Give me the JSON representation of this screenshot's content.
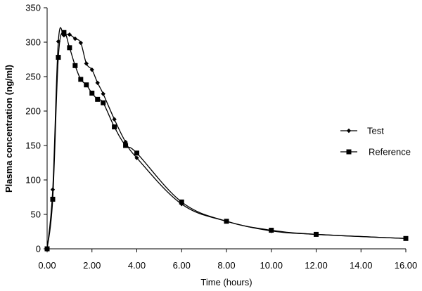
{
  "chart_data": {
    "type": "line",
    "title": "",
    "xlabel": "Time (hours)",
    "ylabel": "Plasma concentration (ng/ml)",
    "xlim": [
      0,
      16
    ],
    "ylim": [
      0,
      350
    ],
    "xticks": [
      0,
      2,
      4,
      6,
      8,
      10,
      12,
      14,
      16
    ],
    "xtick_labels": [
      "0.00",
      "2.00",
      "4.00",
      "6.00",
      "8.00",
      "10.00",
      "12.00",
      "14.00",
      "16.00"
    ],
    "yticks": [
      0,
      50,
      100,
      150,
      200,
      250,
      300,
      350
    ],
    "ytick_labels": [
      "0",
      "50",
      "100",
      "150",
      "200",
      "250",
      "300",
      "350"
    ],
    "grid": false,
    "legend_position": "right",
    "series": [
      {
        "name": "Test",
        "marker": "diamond",
        "x": [
          0,
          0.25,
          0.5,
          0.75,
          1.0,
          1.25,
          1.5,
          1.75,
          2.0,
          2.25,
          2.5,
          3.0,
          3.5,
          4.0,
          6.0,
          8.0,
          10.0,
          12.0,
          16.0
        ],
        "y": [
          0,
          86,
          301,
          310,
          311,
          305,
          299,
          269,
          260,
          241,
          225,
          188,
          155,
          132,
          65,
          40,
          26,
          21,
          15
        ]
      },
      {
        "name": "Reference",
        "marker": "square",
        "x": [
          0,
          0.25,
          0.5,
          0.75,
          1.0,
          1.25,
          1.5,
          1.75,
          2.0,
          2.25,
          2.5,
          3.0,
          3.5,
          4.0,
          6.0,
          8.0,
          10.0,
          12.0,
          16.0
        ],
        "y": [
          0,
          72,
          278,
          314,
          292,
          266,
          246,
          238,
          226,
          217,
          212,
          177,
          150,
          139,
          68,
          40,
          27,
          21,
          15
        ]
      }
    ]
  }
}
